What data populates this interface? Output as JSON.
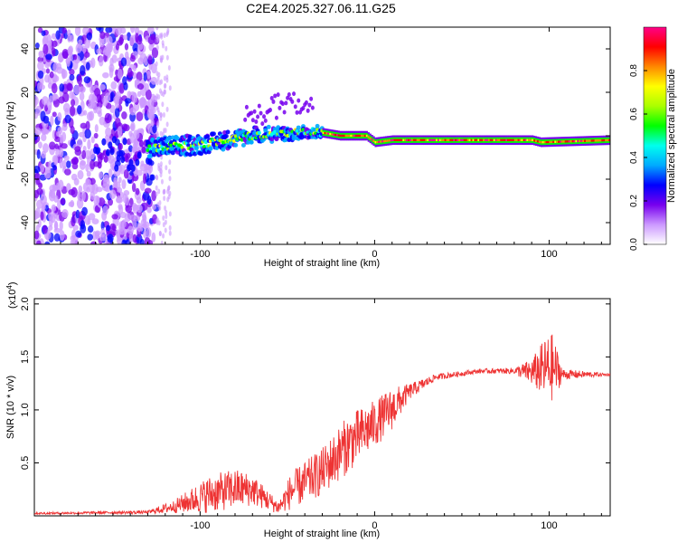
{
  "title": "C2E4.2025.327.06.11.G25",
  "chart_data": [
    {
      "type": "heatmap",
      "xlabel": "Height of straight line (km)",
      "ylabel": "Frequency (Hz)",
      "xlim": [
        -195,
        135
      ],
      "ylim": [
        -50,
        50
      ],
      "xticks": [
        -100,
        0,
        100
      ],
      "yticks": [
        -40,
        -20,
        0,
        20,
        40
      ],
      "colorbar": {
        "label": "Normalized spectral amplitude",
        "range": [
          0,
          1
        ],
        "ticks": [
          "0.0",
          "0.2",
          "0.4",
          "0.6",
          "0.8"
        ],
        "colors": [
          "#ffffff",
          "#cc99ff",
          "#7700ee",
          "#0000ff",
          "#00aaff",
          "#00ffee",
          "#00ff00",
          "#aaff00",
          "#ffff00",
          "#ff8800",
          "#ff0000",
          "#ff0088"
        ]
      },
      "ridge": [
        {
          "x": -130,
          "f": -6
        },
        {
          "x": -100,
          "f": -4
        },
        {
          "x": -70,
          "f": 0
        },
        {
          "x": -50,
          "f": 1
        },
        {
          "x": -35,
          "f": 2
        },
        {
          "x": -20,
          "f": 0
        },
        {
          "x": -5,
          "f": 0
        },
        {
          "x": 0,
          "f": -3
        },
        {
          "x": 10,
          "f": -2
        },
        {
          "x": 50,
          "f": -2
        },
        {
          "x": 90,
          "f": -2
        },
        {
          "x": 95,
          "f": -3
        },
        {
          "x": 135,
          "f": -2
        }
      ]
    },
    {
      "type": "line",
      "xlabel": "Height of straight line (km)",
      "ylabel": "SNR (10 * v/v)",
      "y_multiplier": "(x10",
      "y_multiplier_exp": "4",
      "xlim": [
        -195,
        135
      ],
      "ylim": [
        0,
        2.05
      ],
      "xticks": [
        -100,
        0,
        100
      ],
      "yticks": [
        "0.5",
        "1.0",
        "1.5",
        "2.0"
      ],
      "series": [
        {
          "name": "SNR",
          "color": "#ee3333",
          "envelope": [
            {
              "x": -195,
              "base": 0.02,
              "amp": 0.02
            },
            {
              "x": -130,
              "base": 0.03,
              "amp": 0.03
            },
            {
              "x": -115,
              "base": 0.07,
              "amp": 0.12
            },
            {
              "x": -95,
              "base": 0.15,
              "amp": 0.35
            },
            {
              "x": -80,
              "base": 0.2,
              "amp": 0.38
            },
            {
              "x": -70,
              "base": 0.2,
              "amp": 0.3
            },
            {
              "x": -55,
              "base": 0.06,
              "amp": 0.12
            },
            {
              "x": -48,
              "base": 0.18,
              "amp": 0.35
            },
            {
              "x": -30,
              "base": 0.35,
              "amp": 0.45
            },
            {
              "x": -15,
              "base": 0.6,
              "amp": 0.55
            },
            {
              "x": 0,
              "base": 0.8,
              "amp": 0.45
            },
            {
              "x": 10,
              "base": 0.95,
              "amp": 0.4
            },
            {
              "x": 20,
              "base": 1.15,
              "amp": 0.15
            },
            {
              "x": 35,
              "base": 1.3,
              "amp": 0.06
            },
            {
              "x": 60,
              "base": 1.36,
              "amp": 0.04
            },
            {
              "x": 80,
              "base": 1.36,
              "amp": 0.06
            },
            {
              "x": 90,
              "base": 1.32,
              "amp": 0.25
            },
            {
              "x": 98,
              "base": 1.3,
              "amp": 0.6
            },
            {
              "x": 102,
              "base": 1.3,
              "amp": 0.65
            },
            {
              "x": 108,
              "base": 1.32,
              "amp": 0.1
            },
            {
              "x": 135,
              "base": 1.33,
              "amp": 0.02
            }
          ]
        }
      ]
    }
  ]
}
